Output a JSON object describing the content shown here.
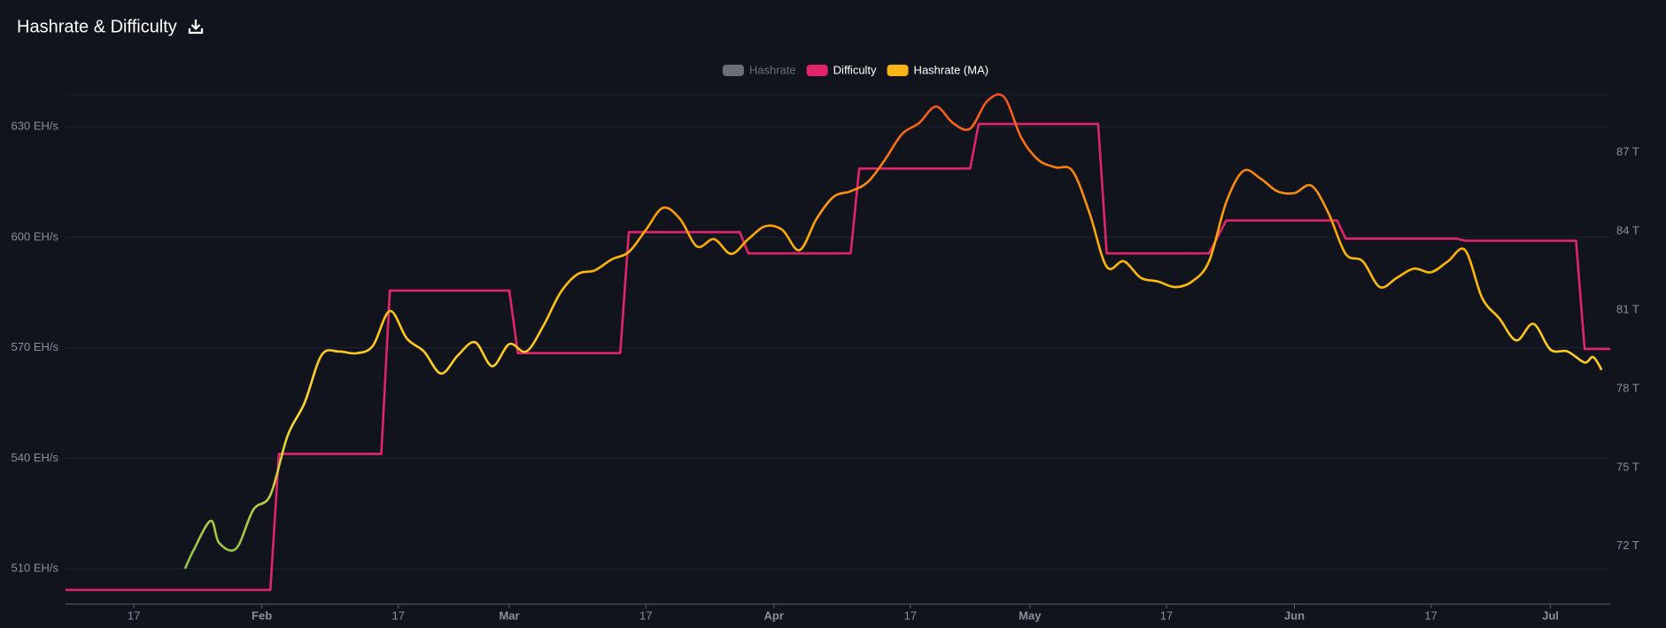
{
  "chart_data": {
    "type": "line",
    "title": "Hashrate & Difficulty",
    "xlim": [
      "01-09",
      "07-08"
    ],
    "xticks": [
      {
        "value": "01-17",
        "label": "17"
      },
      {
        "value": "02-01",
        "label": "Feb"
      },
      {
        "value": "02-17",
        "label": "17"
      },
      {
        "value": "03-01",
        "label": "Mar"
      },
      {
        "value": "03-17",
        "label": "17"
      },
      {
        "value": "04-01",
        "label": "Apr"
      },
      {
        "value": "04-17",
        "label": "17"
      },
      {
        "value": "05-01",
        "label": "May"
      },
      {
        "value": "05-17",
        "label": "17"
      },
      {
        "value": "06-01",
        "label": "Jun"
      },
      {
        "value": "06-17",
        "label": "17"
      },
      {
        "value": "07-01",
        "label": "Jul"
      }
    ],
    "ylim": [
      500.4,
      638.7
    ],
    "yticks": [
      {
        "value": 510,
        "label": "510 EH/s"
      },
      {
        "value": 540,
        "label": "540 EH/s"
      },
      {
        "value": 570,
        "label": "570 EH/s"
      },
      {
        "value": 600,
        "label": "600 EH/s"
      },
      {
        "value": 630,
        "label": "630 EH/s"
      }
    ],
    "y2lim": [
      69.8,
      89.2
    ],
    "y2ticks": [
      {
        "value": 72,
        "label": "72 T"
      },
      {
        "value": 75,
        "label": "75 T"
      },
      {
        "value": 78,
        "label": "78 T"
      },
      {
        "value": 81,
        "label": "81 T"
      },
      {
        "value": 84,
        "label": "84 T"
      },
      {
        "value": 87,
        "label": "87 T"
      }
    ],
    "grid": true,
    "legend": "top",
    "series": [
      {
        "name": "Hashrate",
        "color": "#6b6f7a",
        "hidden": true
      },
      {
        "name": "Difficulty",
        "color": "#e0266b",
        "axis": "y2",
        "x": [
          "01-09",
          "02-02",
          "02-03",
          "02-15",
          "02-16",
          "03-01",
          "03-02",
          "03-14",
          "03-15",
          "03-28",
          "03-29",
          "04-10",
          "04-11",
          "04-24",
          "04-25",
          "05-09",
          "05-10",
          "05-22",
          "05-24",
          "06-06",
          "06-07",
          "06-20",
          "06-21",
          "07-04",
          "07-05",
          "07-08"
        ],
        "values": [
          70.34,
          70.34,
          75.52,
          75.52,
          81.74,
          81.74,
          79.36,
          79.36,
          83.97,
          83.97,
          83.16,
          83.16,
          86.39,
          86.39,
          88.09,
          88.09,
          83.16,
          83.16,
          84.41,
          84.41,
          83.72,
          83.72,
          83.64,
          83.64,
          79.52,
          79.52
        ]
      },
      {
        "name": "Hashrate (MA)",
        "color": "#fbb315",
        "gradient": [
          "#8bc34a",
          "#fdd835",
          "#ffb300",
          "#f4511e"
        ],
        "x": [
          "01-23",
          "01-24",
          "01-26",
          "01-27",
          "01-29",
          "01-31",
          "02-02",
          "02-04",
          "02-06",
          "02-08",
          "02-10",
          "02-12",
          "02-14",
          "02-16",
          "02-18",
          "02-20",
          "02-22",
          "02-24",
          "02-26",
          "02-28",
          "03-01",
          "03-03",
          "03-05",
          "03-07",
          "03-09",
          "03-11",
          "03-13",
          "03-15",
          "03-17",
          "03-19",
          "03-21",
          "03-23",
          "03-25",
          "03-27",
          "03-29",
          "03-31",
          "04-02",
          "04-04",
          "04-06",
          "04-08",
          "04-10",
          "04-12",
          "04-14",
          "04-16",
          "04-18",
          "04-20",
          "04-22",
          "04-24",
          "04-26",
          "04-28",
          "04-30",
          "05-02",
          "05-04",
          "05-06",
          "05-08",
          "05-10",
          "05-12",
          "05-14",
          "05-16",
          "05-18",
          "05-20",
          "05-22",
          "05-24",
          "05-26",
          "05-28",
          "05-30",
          "06-01",
          "06-03",
          "06-05",
          "06-07",
          "06-09",
          "06-11",
          "06-13",
          "06-15",
          "06-17",
          "06-19",
          "06-21",
          "06-23",
          "06-25",
          "06-27",
          "06-29",
          "07-01",
          "07-03",
          "07-05",
          "07-06",
          "07-07"
        ],
        "values": [
          510,
          515,
          523,
          517,
          515.5,
          526,
          530,
          546,
          555,
          568,
          569,
          568.5,
          570.5,
          580,
          572.5,
          569,
          563,
          568,
          571.5,
          565,
          571,
          569,
          576,
          585,
          590,
          591,
          594,
          596,
          602,
          608,
          605,
          597.5,
          599.5,
          595.5,
          599.5,
          603,
          602,
          596.5,
          605,
          611,
          612.5,
          615,
          621,
          628,
          631,
          635.5,
          631,
          629.5,
          637,
          638,
          627,
          621,
          619,
          618,
          606.5,
          592,
          593.5,
          589,
          588,
          586.5,
          588,
          593.5,
          609.5,
          618,
          616,
          612.5,
          612,
          614,
          606.5,
          595.5,
          593.5,
          586.5,
          589,
          591.5,
          590.5,
          593.5,
          596.5,
          583.5,
          578,
          572,
          576.5,
          569.5,
          569,
          566,
          567.5,
          564
        ]
      }
    ]
  }
}
